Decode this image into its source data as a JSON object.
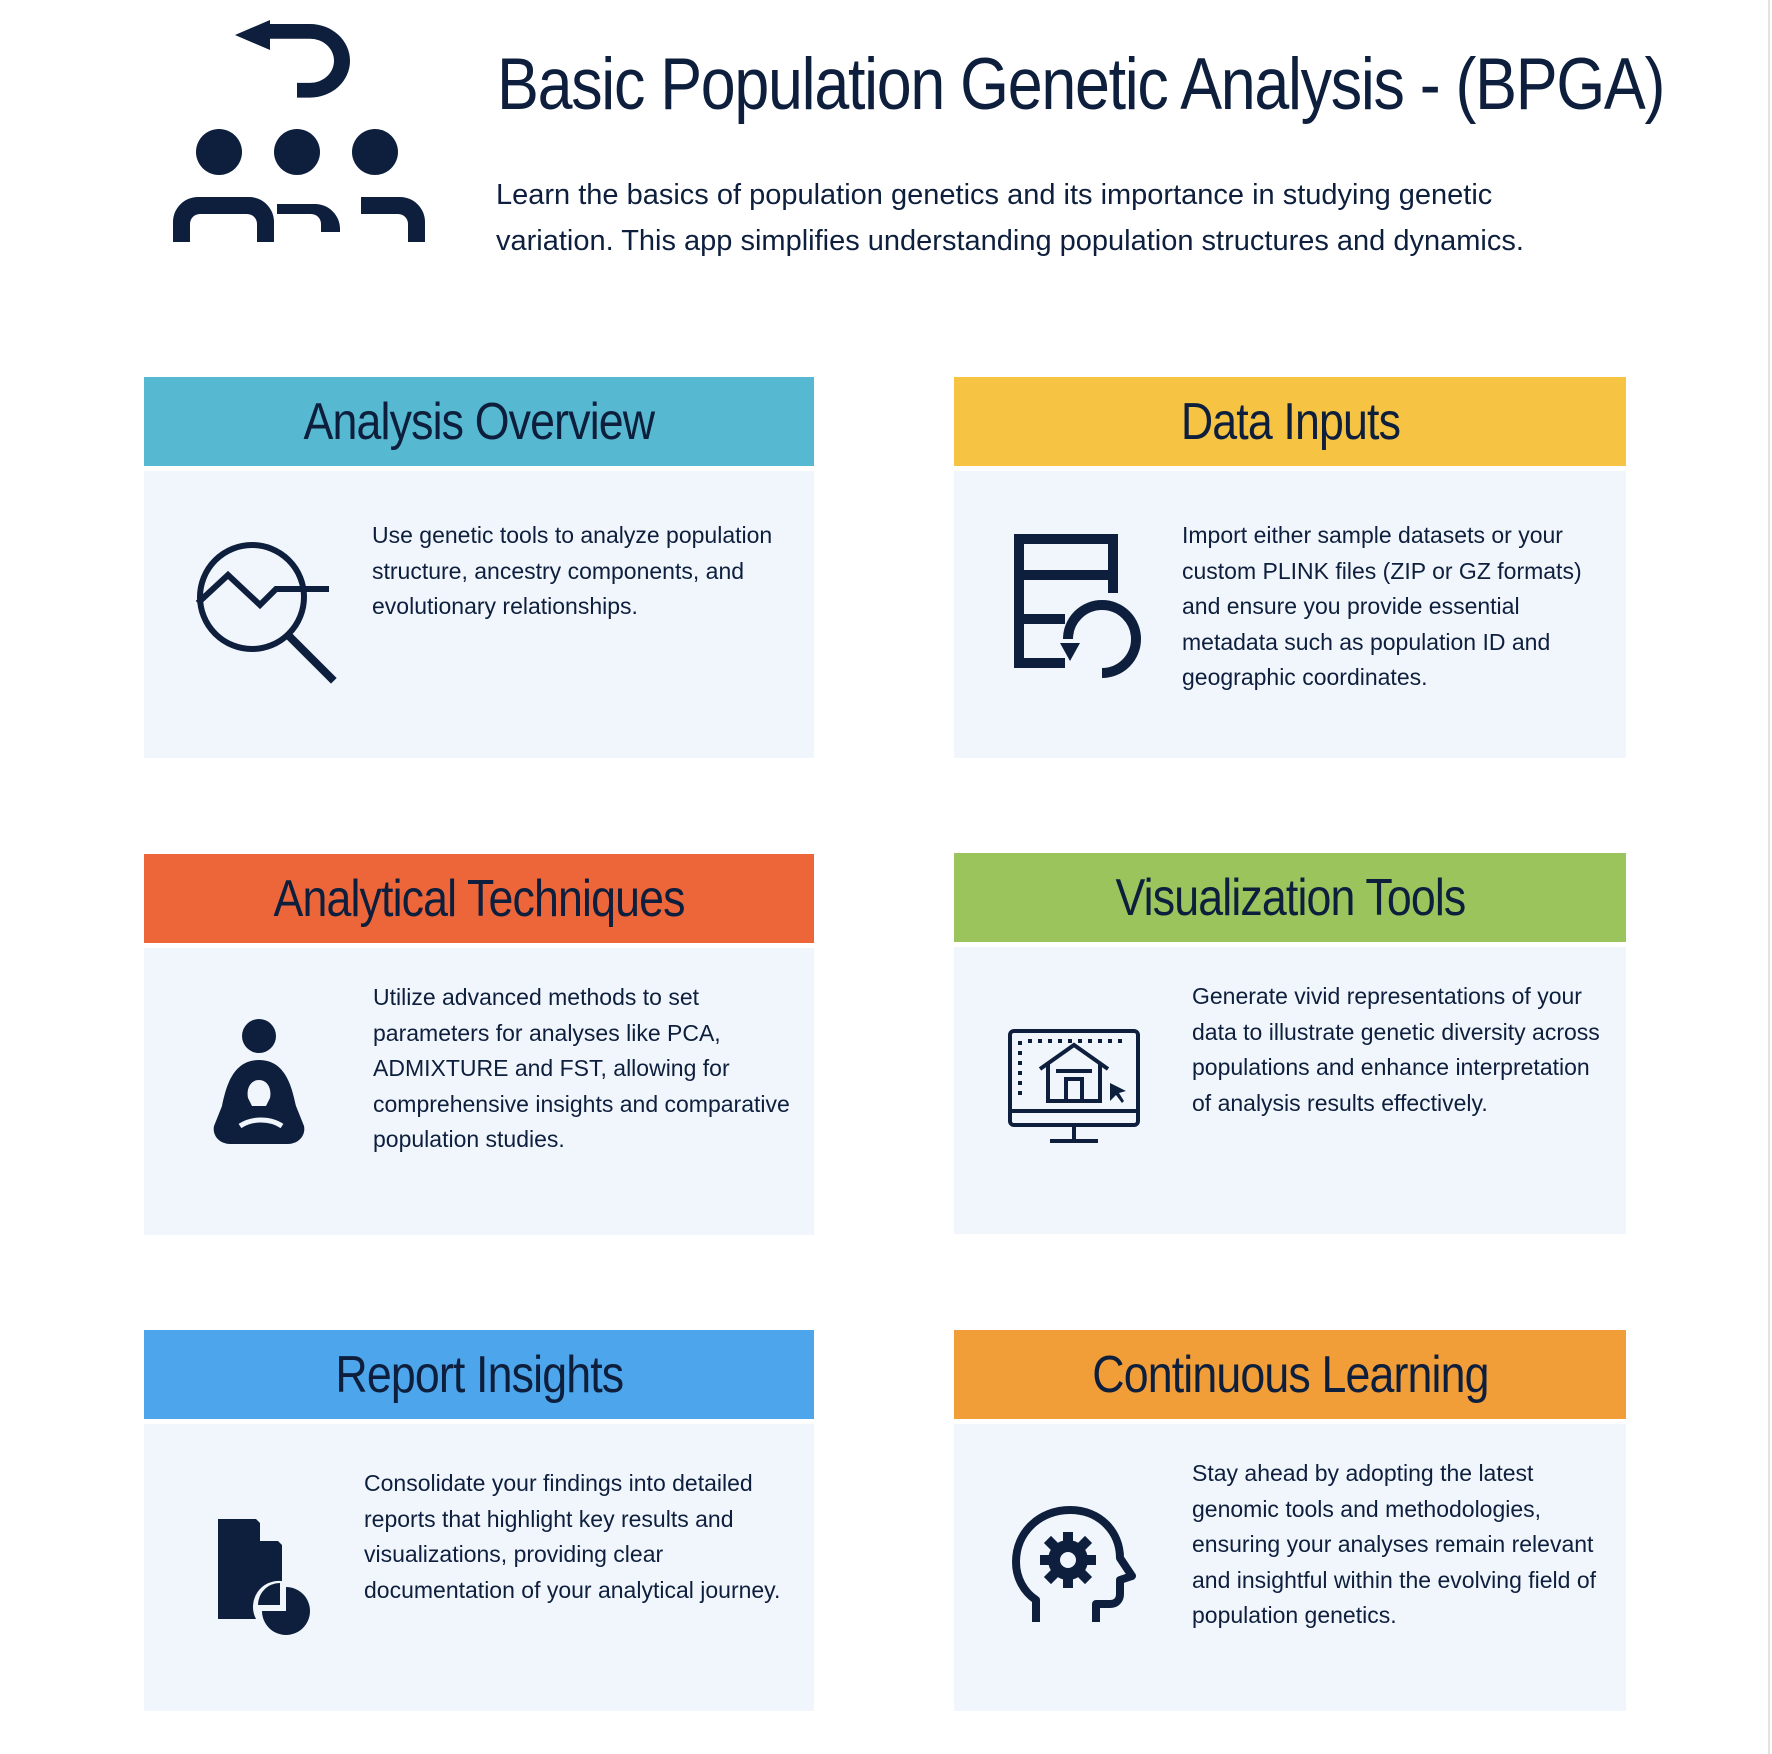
{
  "header": {
    "title": "Basic Population Genetic Analysis - (BPGA)",
    "subtitle": "Learn the basics of population genetics and its importance in studying genetic variation. This app simplifies understanding population structures and dynamics.",
    "logo_icon": "population-return-icon"
  },
  "cards": [
    {
      "title": "Analysis Overview",
      "color": "#57b9d1",
      "icon": "chart-magnifier-icon",
      "text": "Use genetic tools to analyze population structure, ancestry components, and evolutionary relationships."
    },
    {
      "title": "Data Inputs",
      "color": "#f6c343",
      "icon": "database-refresh-icon",
      "text": "Import either sample datasets or your custom PLINK files (ZIP or GZ formats) and ensure you provide essential metadata such as population ID and geographic coordinates."
    },
    {
      "title": "Analytical Techniques",
      "color": "#ed663a",
      "icon": "meditation-person-icon",
      "text": "Utilize advanced methods to set parameters for analyses like PCA, ADMIXTURE and FST, allowing for comprehensive insights and comparative population studies."
    },
    {
      "title": "Visualization Tools",
      "color": "#9bc45c",
      "icon": "monitor-house-design-icon",
      "text": "Generate vivid representations of your data to illustrate genetic diversity across populations and enhance interpretation of analysis results effectively."
    },
    {
      "title": "Report Insights",
      "color": "#4da6ec",
      "icon": "document-chart-icon",
      "text": "Consolidate your findings into detailed reports that highlight key results and visualizations, providing clear documentation of your analytical journey."
    },
    {
      "title": "Continuous Learning",
      "color": "#f19d38",
      "icon": "head-gear-icon",
      "text": "Stay ahead by adopting the latest genomic tools and methodologies, ensuring your analyses remain relevant and insightful within the evolving field of population genetics."
    }
  ]
}
